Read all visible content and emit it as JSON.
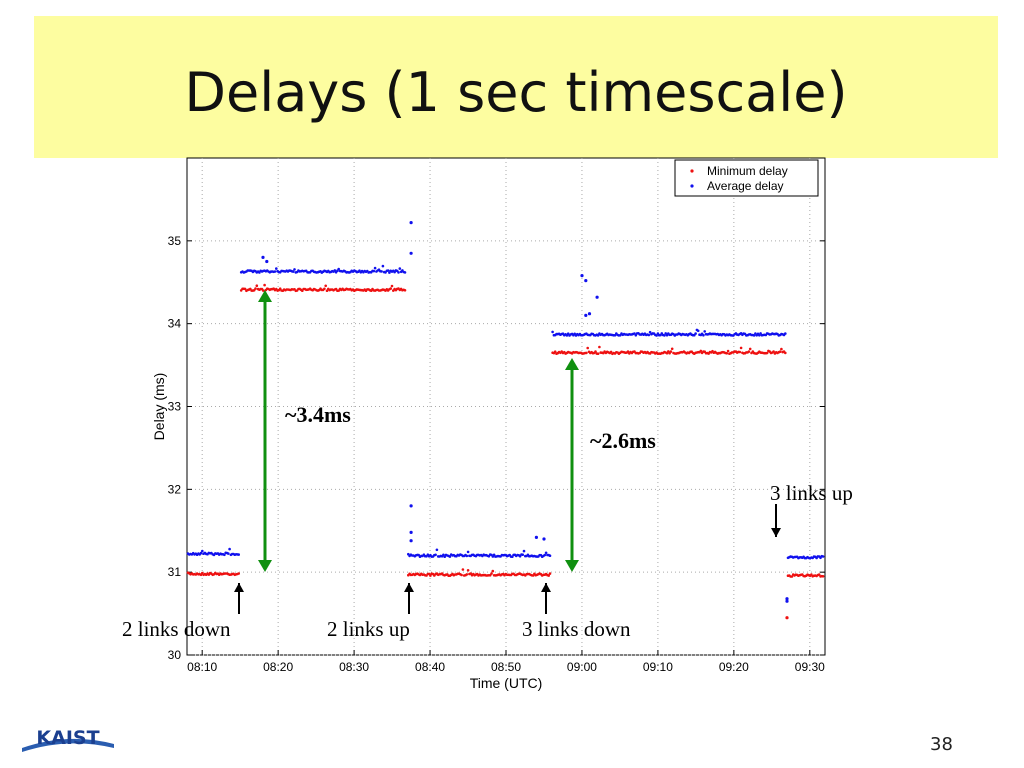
{
  "slide": {
    "title": "Delays (1 sec timescale)",
    "page_number": "38",
    "logo_text": "KAIST",
    "colors": {
      "title_background": "#fdfda0",
      "minimum_delay": "#ee1111",
      "average_delay": "#1111ee",
      "arrow_green": "#109010"
    }
  },
  "annotations": {
    "gap1": "~3.4ms",
    "gap2": "~2.6ms",
    "events": [
      "2 links down",
      "2 links up",
      "3 links down",
      "3 links up"
    ]
  },
  "chart_data": {
    "type": "scatter",
    "title": "",
    "xlabel": "Time (UTC)",
    "ylabel": "Delay (ms)",
    "xlim": [
      "08:08",
      "09:32"
    ],
    "ylim": [
      30,
      36
    ],
    "x_ticks": [
      "08:10",
      "08:20",
      "08:30",
      "08:40",
      "08:50",
      "09:00",
      "09:10",
      "09:20",
      "09:30"
    ],
    "y_ticks": [
      30,
      31,
      32,
      33,
      34,
      35
    ],
    "grid": true,
    "legend": "top-right",
    "series": [
      {
        "name": "Minimum delay",
        "color": "#ee1111",
        "segments": [
          {
            "x_start": "08:08",
            "x_end": "08:15",
            "y": 30.98
          },
          {
            "x_start": "08:15",
            "x_end": "08:37",
            "y": 34.41
          },
          {
            "x_start": "08:37",
            "x_end": "08:56",
            "y": 30.97
          },
          {
            "x_start": "08:56",
            "x_end": "09:27",
            "y": 33.65
          },
          {
            "x_start": "09:27",
            "x_end": "09:32",
            "y": 30.96
          }
        ],
        "outliers": [
          {
            "x": "09:27",
            "y": 30.45
          }
        ]
      },
      {
        "name": "Average delay",
        "color": "#1111ee",
        "segments": [
          {
            "x_start": "08:08",
            "x_end": "08:15",
            "y": 31.22
          },
          {
            "x_start": "08:15",
            "x_end": "08:37",
            "y": 34.63
          },
          {
            "x_start": "08:37",
            "x_end": "08:56",
            "y": 31.2
          },
          {
            "x_start": "08:56",
            "x_end": "09:27",
            "y": 33.87
          },
          {
            "x_start": "09:27",
            "x_end": "09:32",
            "y": 31.18
          }
        ],
        "outliers": [
          {
            "x": "08:18",
            "y": 34.8
          },
          {
            "x": "08:18.5",
            "y": 34.75
          },
          {
            "x": "08:37.5",
            "y": 35.22
          },
          {
            "x": "08:37.5",
            "y": 34.85
          },
          {
            "x": "08:37.5",
            "y": 31.8
          },
          {
            "x": "08:37.5",
            "y": 31.48
          },
          {
            "x": "08:37.5",
            "y": 31.38
          },
          {
            "x": "08:54",
            "y": 31.42
          },
          {
            "x": "08:55",
            "y": 31.4
          },
          {
            "x": "09:00",
            "y": 34.58
          },
          {
            "x": "09:00.5",
            "y": 34.52
          },
          {
            "x": "09:02",
            "y": 34.32
          },
          {
            "x": "09:00.5",
            "y": 34.1
          },
          {
            "x": "09:01",
            "y": 34.12
          },
          {
            "x": "09:27",
            "y": 30.68
          },
          {
            "x": "09:27",
            "y": 30.65
          }
        ]
      }
    ]
  }
}
